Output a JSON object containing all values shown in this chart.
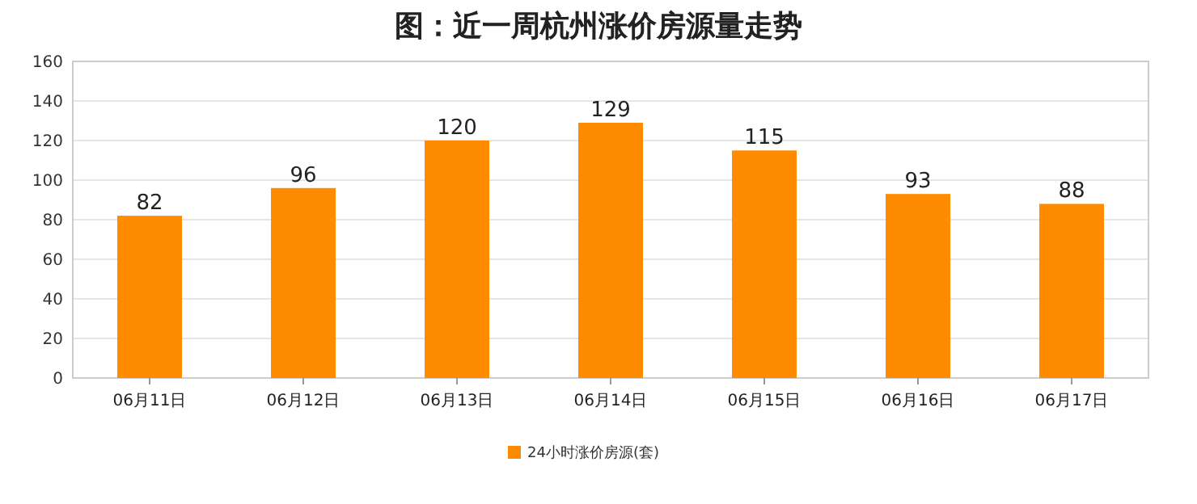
{
  "chart_data": {
    "type": "bar",
    "title": "图：近一周杭州涨价房源量走势",
    "categories": [
      "06月11日",
      "06月12日",
      "06月13日",
      "06月14日",
      "06月15日",
      "06月16日",
      "06月17日"
    ],
    "series": [
      {
        "name": "24小时涨价房源(套)",
        "color": "#ff8c00",
        "values": [
          82,
          96,
          120,
          129,
          115,
          93,
          88
        ]
      }
    ],
    "ylim": [
      0,
      160
    ],
    "yticks": [
      0,
      20,
      40,
      60,
      80,
      100,
      120,
      140,
      160
    ],
    "grid": "y",
    "legend": "bottom",
    "data_labels": true
  }
}
